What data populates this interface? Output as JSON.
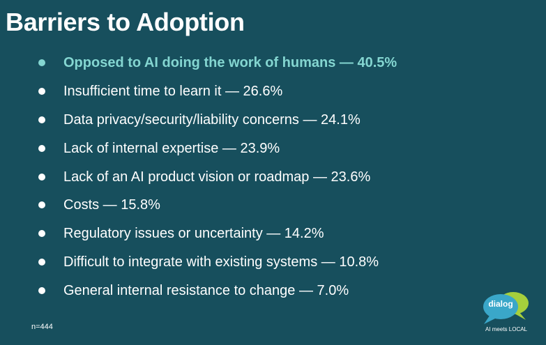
{
  "slide": {
    "title": "Barriers to Adoption",
    "footnote": "n=444"
  },
  "barriers": [
    {
      "text": "Opposed to AI doing the work of humans — 40.5%",
      "value": 40.5,
      "highlighted": true
    },
    {
      "text": "Insufficient time to learn it — 26.6%",
      "value": 26.6,
      "highlighted": false
    },
    {
      "text": "Data privacy/security/liability concerns — 24.1%",
      "value": 24.1,
      "highlighted": false
    },
    {
      "text": "Lack of internal expertise — 23.9%",
      "value": 23.9,
      "highlighted": false
    },
    {
      "text": "Lack of an AI product vision or roadmap — 23.6%",
      "value": 23.6,
      "highlighted": false
    },
    {
      "text": "Costs — 15.8%",
      "value": 15.8,
      "highlighted": false
    },
    {
      "text": "Regulatory issues or uncertainty — 14.2%",
      "value": 14.2,
      "highlighted": false
    },
    {
      "text": "Difficult to integrate with existing systems — 10.8%",
      "value": 10.8,
      "highlighted": false
    },
    {
      "text": "General internal resistance to change — 7.0%",
      "value": 7.0,
      "highlighted": false
    }
  ],
  "logo": {
    "icon": "speech-bubbles-icon",
    "word": "dialog",
    "tagline": "AI meets LOCAL"
  },
  "colors": {
    "background": "#174f5d",
    "text": "#ffffff",
    "highlight": "#84d6d1",
    "logo_bubble_back": "#a6cf3c",
    "logo_bubble_front": "#3aa7c9"
  }
}
